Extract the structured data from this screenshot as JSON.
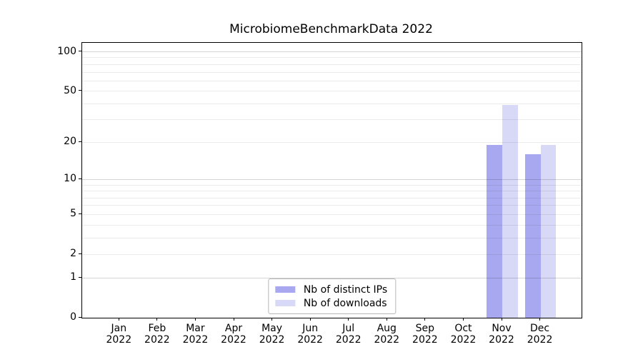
{
  "title": "MicrobiomeBenchmarkData 2022",
  "chart_data": {
    "type": "bar",
    "title": "MicrobiomeBenchmarkData 2022",
    "x_tick_year": "2022",
    "categories": [
      "Jan",
      "Feb",
      "Mar",
      "Apr",
      "May",
      "Jun",
      "Jul",
      "Aug",
      "Sep",
      "Oct",
      "Nov",
      "Dec"
    ],
    "series": [
      {
        "name": "Nb of distinct IPs",
        "color": "#a8a8f0",
        "values": [
          0,
          0,
          0,
          0,
          0,
          0,
          0,
          0,
          0,
          0,
          19,
          16
        ]
      },
      {
        "name": "Nb of downloads",
        "color": "#d8d8f7",
        "values": [
          0,
          0,
          0,
          0,
          0,
          0,
          0,
          0,
          0,
          0,
          39,
          19
        ]
      }
    ],
    "yscale": "log10(value+1)",
    "yticks": [
      0,
      1,
      2,
      5,
      10,
      20,
      50,
      100
    ],
    "ymax": 117,
    "grid": "horizontal",
    "gridlines": {
      "major": [
        1,
        10,
        100
      ],
      "major_color": "#d5d5d5",
      "minor": [
        2,
        3,
        4,
        5,
        6,
        7,
        8,
        9,
        20,
        30,
        40,
        50,
        60,
        70,
        80,
        90
      ],
      "minor_color": "#ececec"
    },
    "legend_position": "lower center",
    "axis_color": "#000000",
    "background_color": "#ffffff"
  }
}
